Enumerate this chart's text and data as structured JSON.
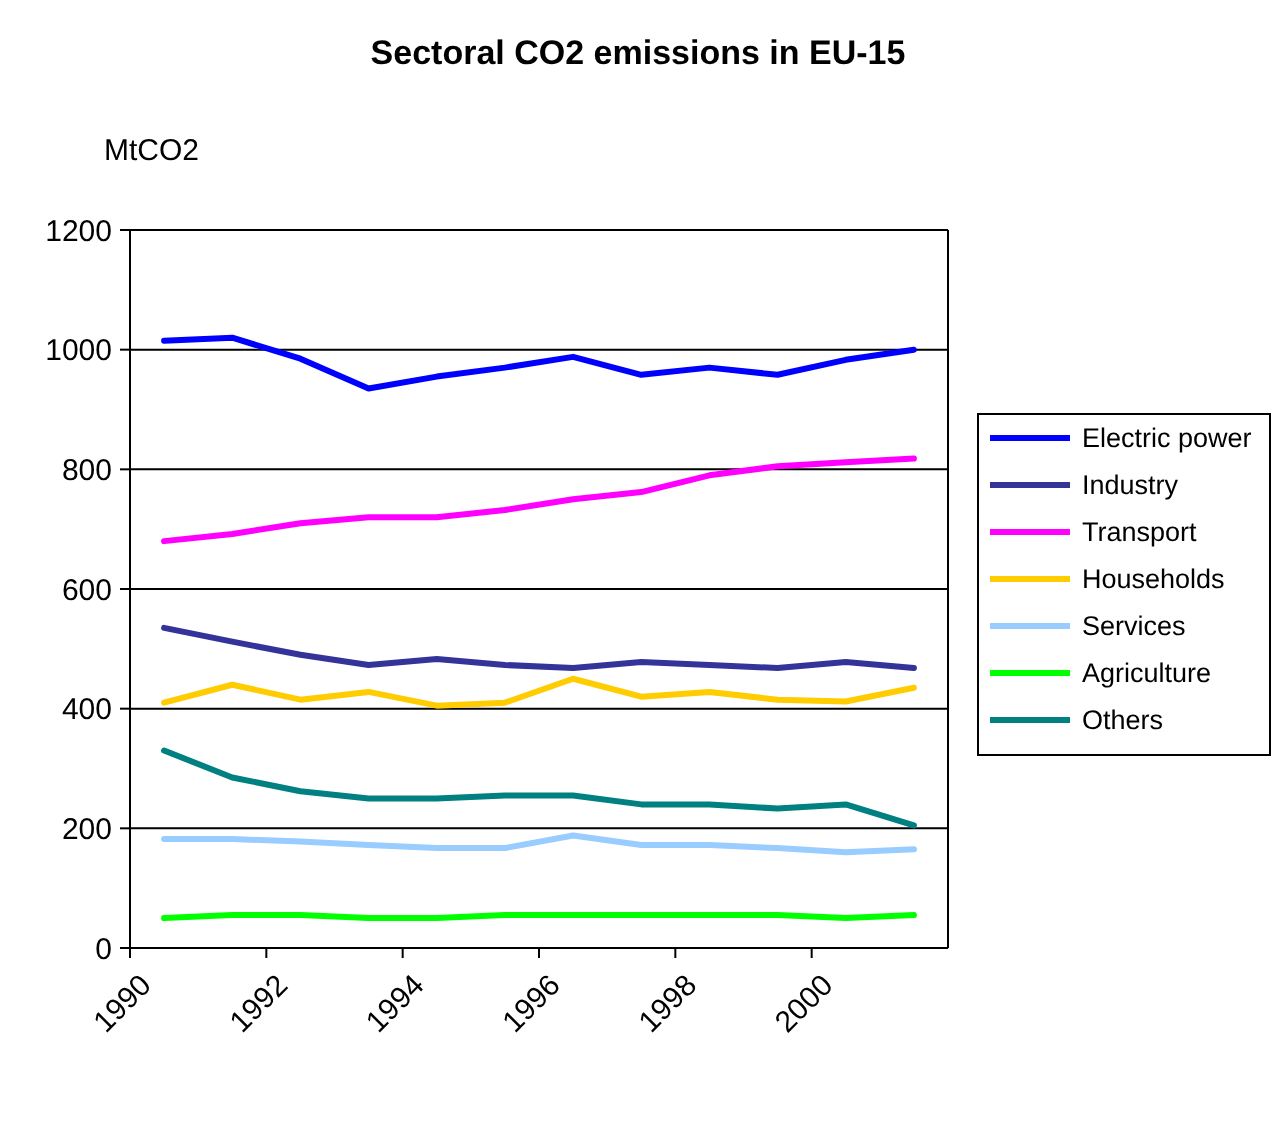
{
  "chart_data": {
    "type": "line",
    "title": "Sectoral CO2 emissions in EU-15",
    "ylabel": "MtCO2",
    "x": [
      1990.5,
      1991.5,
      1992.5,
      1993.5,
      1994.5,
      1995.5,
      1996.5,
      1997.5,
      1998.5,
      1999.5,
      2000.5,
      2001.5
    ],
    "xlim": [
      1990,
      2002
    ],
    "xticks": [
      1990,
      1992,
      1994,
      1996,
      1998,
      2000
    ],
    "ylim": [
      0,
      1200
    ],
    "yticks": [
      0,
      200,
      400,
      600,
      800,
      1000,
      1200
    ],
    "grid": "y",
    "legend": "right",
    "marker": "none",
    "line_style": "solid",
    "series": [
      {
        "name": "Electric power",
        "color": "#0000ff",
        "values": [
          1015,
          1020,
          985,
          935,
          955,
          970,
          988,
          958,
          970,
          958,
          983,
          1000
        ]
      },
      {
        "name": "Industry",
        "color": "#333399",
        "values": [
          535,
          512,
          490,
          473,
          483,
          473,
          468,
          478,
          473,
          468,
          478,
          468
        ]
      },
      {
        "name": "Transport",
        "color": "#ff00ff",
        "values": [
          680,
          692,
          710,
          720,
          720,
          732,
          750,
          762,
          790,
          805,
          812,
          818
        ]
      },
      {
        "name": "Households",
        "color": "#ffcc00",
        "values": [
          410,
          440,
          415,
          428,
          405,
          410,
          450,
          420,
          428,
          415,
          412,
          435
        ]
      },
      {
        "name": "Services",
        "color": "#99ccff",
        "values": [
          182,
          182,
          178,
          172,
          167,
          167,
          188,
          172,
          172,
          167,
          160,
          165
        ]
      },
      {
        "name": "Agriculture",
        "color": "#00ff00",
        "values": [
          50,
          55,
          55,
          50,
          50,
          55,
          55,
          55,
          55,
          55,
          50,
          55
        ]
      },
      {
        "name": "Others",
        "color": "#008080",
        "values": [
          330,
          285,
          262,
          250,
          250,
          255,
          255,
          240,
          240,
          233,
          240,
          205
        ]
      }
    ]
  }
}
